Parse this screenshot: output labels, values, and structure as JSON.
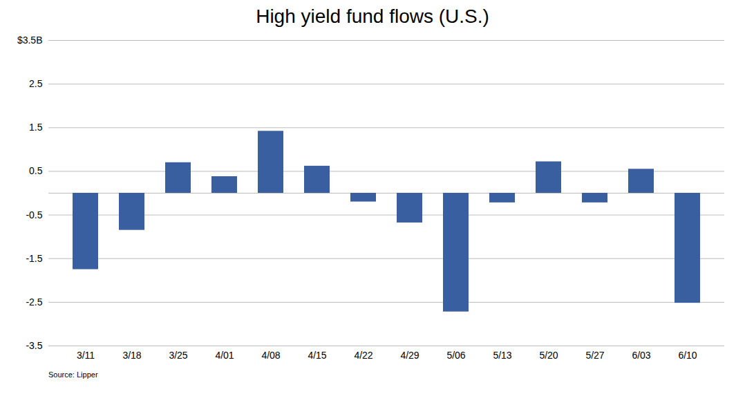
{
  "chart_data": {
    "type": "bar",
    "title": "High yield fund flows (U.S.)",
    "categories": [
      "3/11",
      "3/18",
      "3/25",
      "4/01",
      "4/08",
      "4/15",
      "4/22",
      "4/29",
      "5/06",
      "5/13",
      "5/20",
      "5/27",
      "6/03",
      "6/10"
    ],
    "values": [
      -1.75,
      -0.85,
      0.7,
      0.38,
      1.42,
      0.62,
      -0.2,
      -0.68,
      -2.72,
      -0.22,
      0.72,
      -0.22,
      0.55,
      -2.52
    ],
    "color": "#3A5FA0",
    "ylim": [
      -3.5,
      3.5
    ],
    "yticks": [
      {
        "value": 3.5,
        "label": "$3.5B"
      },
      2.5,
      1.5,
      0.5,
      -0.5,
      -1.5,
      -2.5,
      -3.5
    ],
    "grid": true,
    "source": "Source: Lipper"
  }
}
